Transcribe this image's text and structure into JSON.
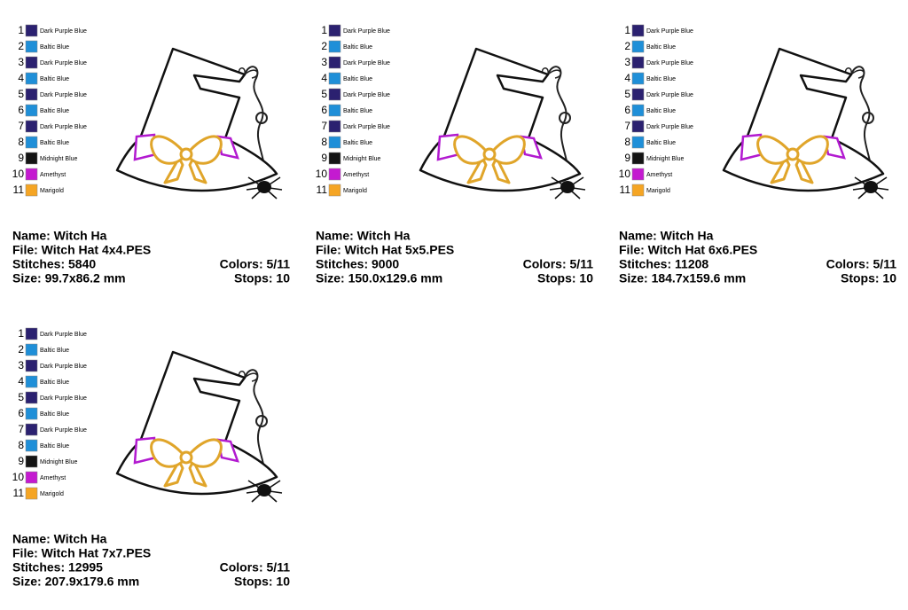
{
  "cards": [
    {
      "threads": [
        {
          "number": 1,
          "name": "Dark Purple Blue",
          "color": "#2b2170"
        },
        {
          "number": 2,
          "name": "Baltic Blue",
          "color": "#1f8fd8"
        },
        {
          "number": 3,
          "name": "Dark Purple Blue",
          "color": "#2b2170"
        },
        {
          "number": 4,
          "name": "Baltic Blue",
          "color": "#1f8fd8"
        },
        {
          "number": 5,
          "name": "Dark Purple Blue",
          "color": "#2b2170"
        },
        {
          "number": 6,
          "name": "Baltic Blue",
          "color": "#1f8fd8"
        },
        {
          "number": 7,
          "name": "Dark Purple Blue",
          "color": "#2b2170"
        },
        {
          "number": 8,
          "name": "Baltic Blue",
          "color": "#1f8fd8"
        },
        {
          "number": 9,
          "name": "Midnight Blue",
          "color": "#141414"
        },
        {
          "number": 10,
          "name": "Amethyst",
          "color": "#c41ad0"
        },
        {
          "number": 11,
          "name": "Marigold",
          "color": "#f5a524"
        }
      ],
      "name": "Name: Witch Ha",
      "file": "File: Witch Hat 4x4.PES",
      "stitches": "Stitches: 5840",
      "colors": "Colors: 5/11",
      "size": "Size: 99.7x86.2 mm",
      "stops": "Stops: 10"
    },
    {
      "threads": [
        {
          "number": 1,
          "name": "Dark Purple Blue",
          "color": "#2b2170"
        },
        {
          "number": 2,
          "name": "Baltic Blue",
          "color": "#1f8fd8"
        },
        {
          "number": 3,
          "name": "Dark Purple Blue",
          "color": "#2b2170"
        },
        {
          "number": 4,
          "name": "Baltic Blue",
          "color": "#1f8fd8"
        },
        {
          "number": 5,
          "name": "Dark Purple Blue",
          "color": "#2b2170"
        },
        {
          "number": 6,
          "name": "Baltic Blue",
          "color": "#1f8fd8"
        },
        {
          "number": 7,
          "name": "Dark Purple Blue",
          "color": "#2b2170"
        },
        {
          "number": 8,
          "name": "Baltic Blue",
          "color": "#1f8fd8"
        },
        {
          "number": 9,
          "name": "Midnight Blue",
          "color": "#141414"
        },
        {
          "number": 10,
          "name": "Amethyst",
          "color": "#c41ad0"
        },
        {
          "number": 11,
          "name": "Marigold",
          "color": "#f5a524"
        }
      ],
      "name": "Name: Witch Ha",
      "file": "File: Witch Hat 5x5.PES",
      "stitches": "Stitches: 9000",
      "colors": "Colors: 5/11",
      "size": "Size: 150.0x129.6 mm",
      "stops": "Stops: 10"
    },
    {
      "threads": [
        {
          "number": 1,
          "name": "Dark Purple Blue",
          "color": "#2b2170"
        },
        {
          "number": 2,
          "name": "Baltic Blue",
          "color": "#1f8fd8"
        },
        {
          "number": 3,
          "name": "Dark Purple Blue",
          "color": "#2b2170"
        },
        {
          "number": 4,
          "name": "Baltic Blue",
          "color": "#1f8fd8"
        },
        {
          "number": 5,
          "name": "Dark Purple Blue",
          "color": "#2b2170"
        },
        {
          "number": 6,
          "name": "Baltic Blue",
          "color": "#1f8fd8"
        },
        {
          "number": 7,
          "name": "Dark Purple Blue",
          "color": "#2b2170"
        },
        {
          "number": 8,
          "name": "Baltic Blue",
          "color": "#1f8fd8"
        },
        {
          "number": 9,
          "name": "Midnight Blue",
          "color": "#141414"
        },
        {
          "number": 10,
          "name": "Amethyst",
          "color": "#c41ad0"
        },
        {
          "number": 11,
          "name": "Marigold",
          "color": "#f5a524"
        }
      ],
      "name": "Name: Witch Ha",
      "file": "File: Witch Hat 6x6.PES",
      "stitches": "Stitches: 11208",
      "colors": "Colors: 5/11",
      "size": "Size: 184.7x159.6 mm",
      "stops": "Stops: 10"
    },
    {
      "threads": [
        {
          "number": 1,
          "name": "Dark Purple Blue",
          "color": "#2b2170"
        },
        {
          "number": 2,
          "name": "Baltic Blue",
          "color": "#1f8fd8"
        },
        {
          "number": 3,
          "name": "Dark Purple Blue",
          "color": "#2b2170"
        },
        {
          "number": 4,
          "name": "Baltic Blue",
          "color": "#1f8fd8"
        },
        {
          "number": 5,
          "name": "Dark Purple Blue",
          "color": "#2b2170"
        },
        {
          "number": 6,
          "name": "Baltic Blue",
          "color": "#1f8fd8"
        },
        {
          "number": 7,
          "name": "Dark Purple Blue",
          "color": "#2b2170"
        },
        {
          "number": 8,
          "name": "Baltic Blue",
          "color": "#1f8fd8"
        },
        {
          "number": 9,
          "name": "Midnight Blue",
          "color": "#141414"
        },
        {
          "number": 10,
          "name": "Amethyst",
          "color": "#c41ad0"
        },
        {
          "number": 11,
          "name": "Marigold",
          "color": "#f5a524"
        }
      ],
      "name": "Name: Witch Ha",
      "file": "File: Witch Hat 7x7.PES",
      "stitches": "Stitches: 12995",
      "colors": "Colors: 5/11",
      "size": "Size: 207.9x179.6 mm",
      "stops": "Stops: 10"
    }
  ]
}
